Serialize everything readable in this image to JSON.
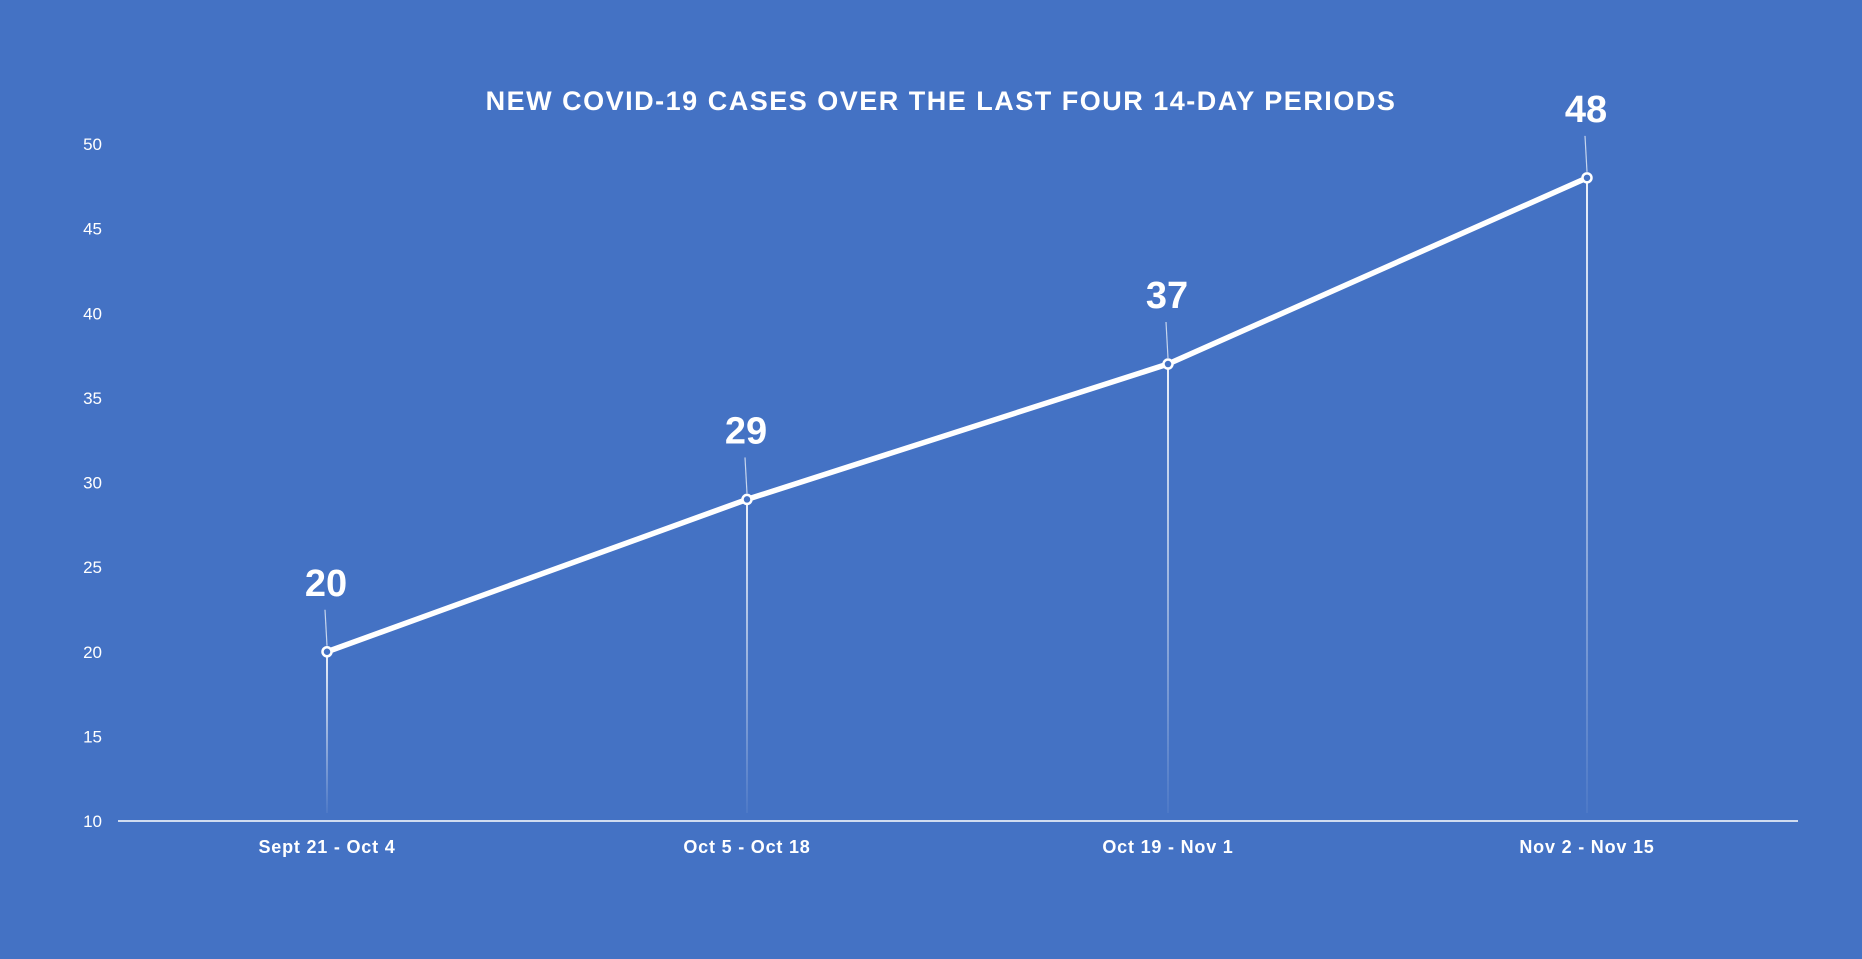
{
  "chart_data": {
    "type": "line",
    "title": "NEW COVID-19 CASES OVER THE LAST FOUR 14-DAY PERIODS",
    "xlabel": "",
    "ylabel": "",
    "categories": [
      "Sept 21 - Oct 4",
      "Oct 5 - Oct 18",
      "Oct 19 - Nov 1",
      "Nov 2 - Nov 15"
    ],
    "series": [
      {
        "values": [
          20,
          29,
          37,
          48
        ]
      }
    ],
    "ylim": [
      10,
      50
    ],
    "yticks": [
      10,
      15,
      20,
      25,
      30,
      35,
      40,
      45,
      50
    ],
    "grid": false,
    "legend": "none",
    "data_labels": true,
    "drop_lines": true,
    "colors": {
      "background": "#4472c4",
      "line": "#ffffff",
      "text": "#ffffff"
    }
  }
}
